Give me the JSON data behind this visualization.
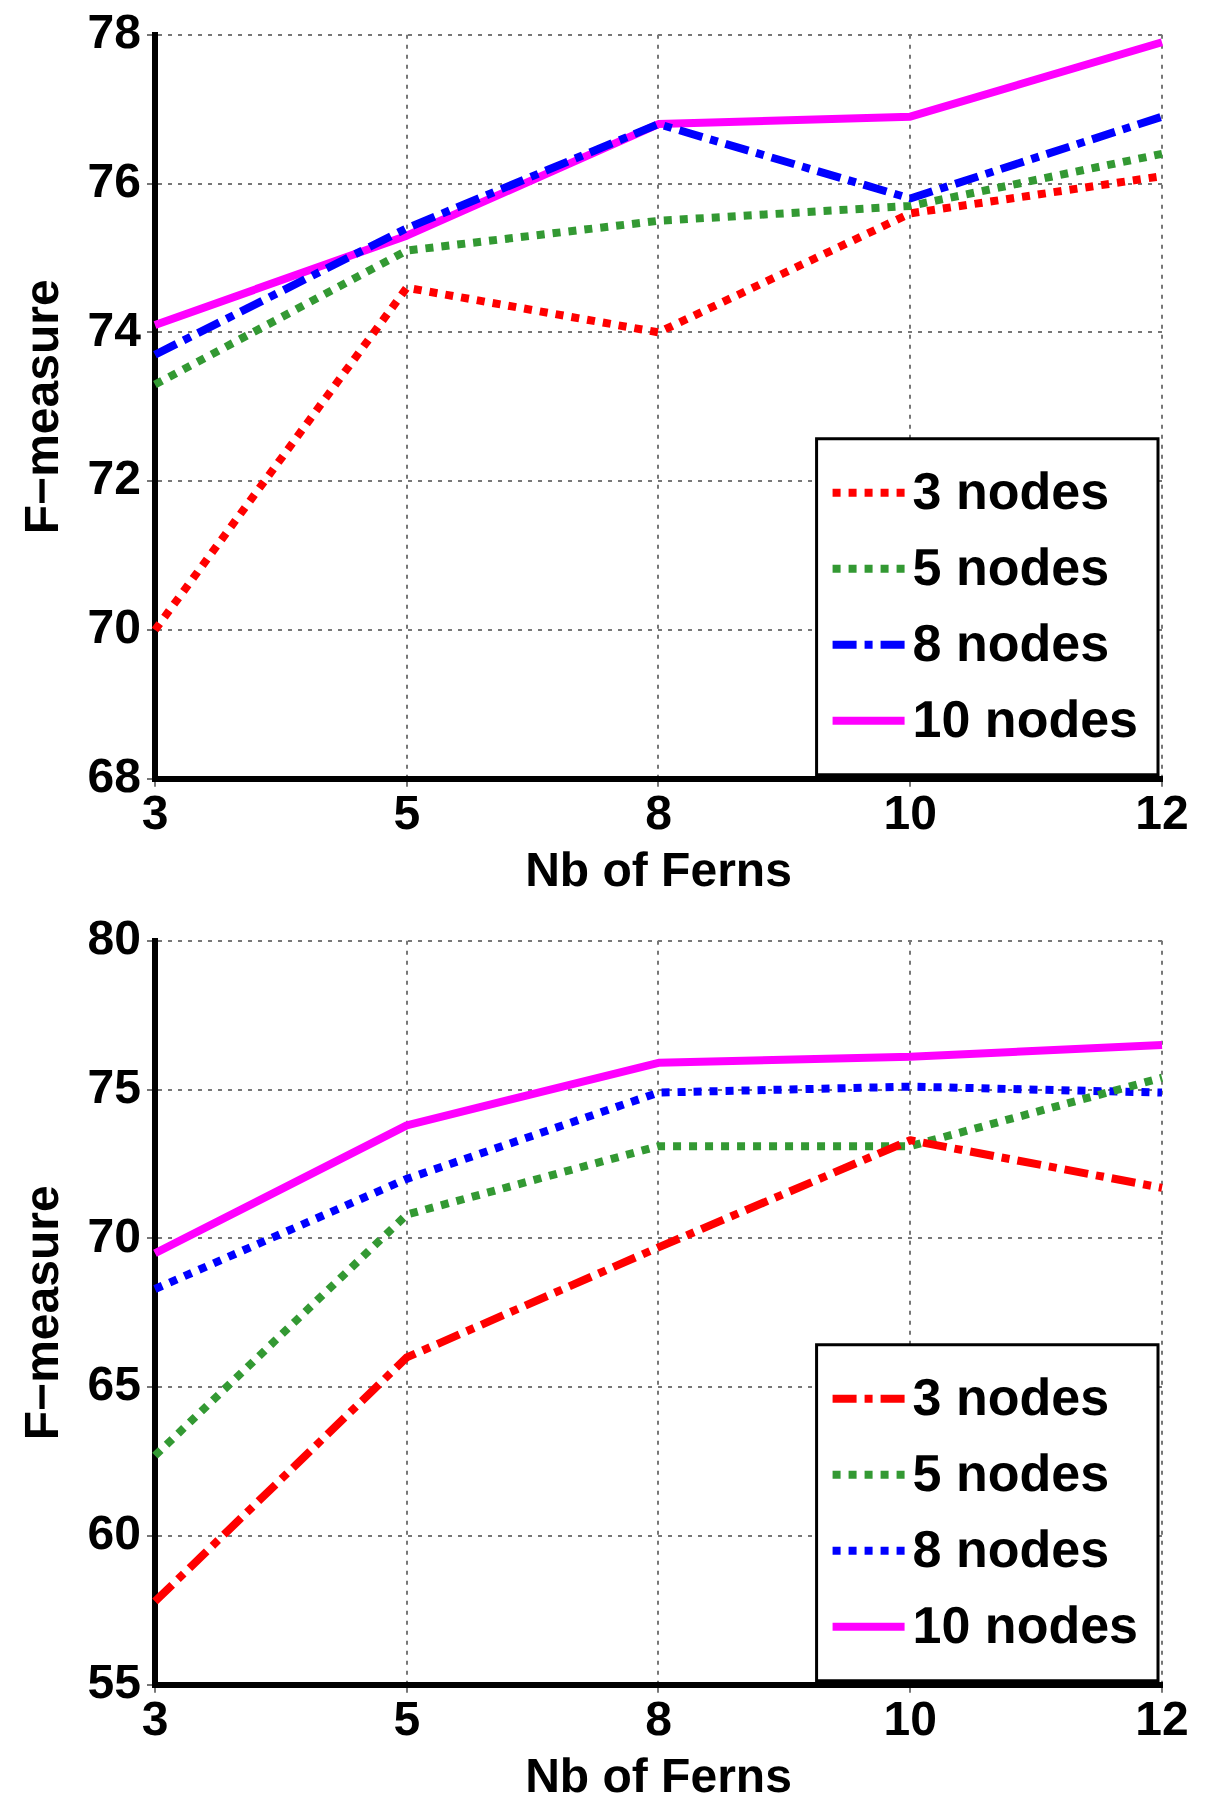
{
  "chart_data": [
    {
      "type": "line",
      "xlabel": "Nb of Ferns",
      "ylabel": "F−measure",
      "categories": [
        "3",
        "5",
        "8",
        "10",
        "12"
      ],
      "ylim": [
        68,
        78
      ],
      "yticks": [
        68,
        70,
        72,
        74,
        76,
        78
      ],
      "grid": true,
      "legend": "bottom right",
      "series": [
        {
          "name": "3 nodes",
          "color": "#ff0000",
          "line_style": "dotted",
          "values": [
            70.0,
            74.6,
            74.0,
            75.6,
            76.1
          ]
        },
        {
          "name": "5 nodes",
          "color": "#339933",
          "line_style": "dotted",
          "values": [
            73.3,
            75.1,
            75.5,
            75.7,
            76.4
          ]
        },
        {
          "name": "8 nodes",
          "color": "#0000ff",
          "line_style": "dashed",
          "values": [
            73.7,
            75.4,
            76.8,
            75.8,
            76.9
          ]
        },
        {
          "name": "10 nodes",
          "color": "#ff00ff",
          "line_style": "solid",
          "values": [
            74.1,
            75.3,
            76.8,
            76.9,
            77.9
          ]
        }
      ]
    },
    {
      "type": "line",
      "xlabel": "Nb of Ferns",
      "ylabel": "F−measure",
      "categories": [
        "3",
        "5",
        "8",
        "10",
        "12"
      ],
      "ylim": [
        55,
        80
      ],
      "yticks": [
        55,
        60,
        65,
        70,
        75,
        80
      ],
      "grid": true,
      "legend": "bottom right",
      "series": [
        {
          "name": "3 nodes",
          "color": "#ff0000",
          "line_style": "dashed",
          "values": [
            57.8,
            66.0,
            69.7,
            73.3,
            71.7
          ]
        },
        {
          "name": "5 nodes",
          "color": "#339933",
          "line_style": "dotted",
          "values": [
            62.7,
            70.8,
            73.1,
            73.1,
            75.4
          ]
        },
        {
          "name": "8 nodes",
          "color": "#0000ff",
          "line_style": "dotted",
          "values": [
            68.3,
            72.0,
            74.9,
            75.1,
            74.9
          ]
        },
        {
          "name": "10 nodes",
          "color": "#ff00ff",
          "line_style": "solid",
          "values": [
            69.5,
            73.8,
            75.9,
            76.1,
            76.5
          ]
        }
      ]
    }
  ]
}
